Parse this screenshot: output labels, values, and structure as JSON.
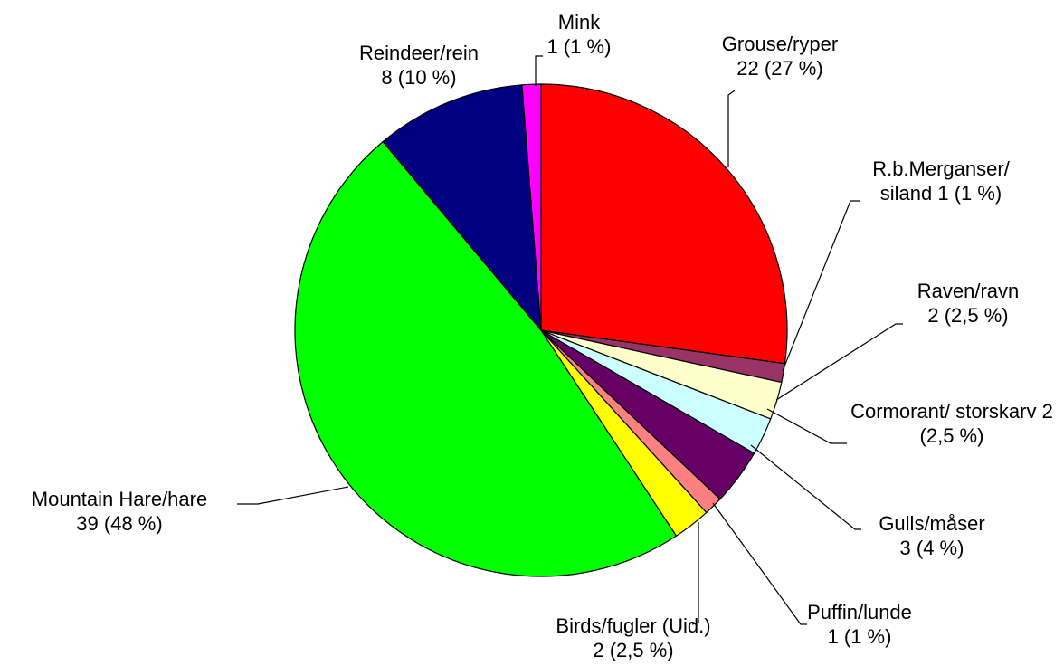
{
  "chart_data": {
    "type": "pie",
    "categories": [
      "Grouse/ryper",
      "R.b.Merganser/ siland",
      "Raven/ravn",
      "Cormorant/ storskarv",
      "Gulls/måser",
      "Puffin/lunde",
      "Birds/fugler (Uid.)",
      "Mountain Hare/hare",
      "Reindeer/rein",
      "Mink"
    ],
    "values": [
      22,
      1,
      2,
      2,
      3,
      1,
      2,
      39,
      8,
      1
    ],
    "value_labels": [
      "22 (27 %)",
      "1 (1 %)",
      "2 (2,5 %)",
      "2 (2,5 %)",
      "3 (4 %)",
      "1 (1 %)",
      "2 (2,5 %)",
      "39 (48 %)",
      "8 (10 %)",
      "1 (1 %)"
    ],
    "colors": [
      "#ff0000",
      "#993366",
      "#ffffcc",
      "#ccffff",
      "#660066",
      "#ff8080",
      "#ffff00",
      "#00ff00",
      "#000080",
      "#ff00ff"
    ]
  }
}
